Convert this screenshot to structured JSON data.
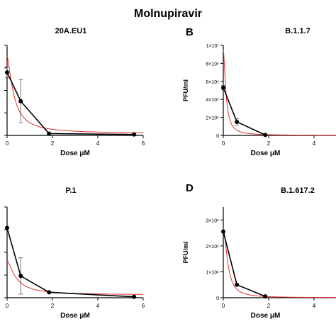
{
  "figure_title": "Molnupiravir",
  "chart_data": [
    {
      "type": "line",
      "panel_letter": "",
      "title": "20A.EU1",
      "xlabel": "Dose μM",
      "ylabel": "",
      "xlim": [
        0,
        6
      ],
      "ylim": [
        0,
        100
      ],
      "x_ticks": [
        "0",
        "2",
        "4",
        "6"
      ],
      "y_ticks": [],
      "grid": false,
      "series": [
        {
          "role": "observed",
          "color": "#000000",
          "x": [
            0,
            0.6,
            1.85,
            5.6
          ],
          "y": [
            70,
            38,
            2,
            1
          ],
          "err": [
            6,
            24,
            0,
            0
          ]
        },
        {
          "role": "fit",
          "color": "#e0302a",
          "ic_x0": 0.3,
          "top": 88,
          "bottom": 2,
          "hill": 1.5
        }
      ]
    },
    {
      "type": "line",
      "panel_letter": "B",
      "title": "B.1.1.7",
      "xlabel": "Dose μM",
      "ylabel": "PFU/ml",
      "xlim": [
        0,
        6
      ],
      "ylim": [
        0,
        10000000
      ],
      "x_ticks": [
        "0",
        "2",
        "4"
      ],
      "y_ticks": [
        "0",
        "2×10⁶",
        "4×10⁶",
        "6×10⁶",
        "8×10⁶",
        "1×10⁷"
      ],
      "y_tick_values": [
        0,
        2000000,
        4000000,
        6000000,
        8000000,
        10000000
      ],
      "grid": false,
      "series": [
        {
          "role": "observed",
          "color": "#000000",
          "x": [
            0,
            0.6,
            1.85
          ],
          "y": [
            5300000,
            1500000,
            50000
          ],
          "err": [
            250000,
            350000,
            0
          ]
        },
        {
          "role": "fit",
          "color": "#e0302a",
          "ic_x0": 0.12,
          "top": 9500000,
          "bottom": 0,
          "hill": 1.7
        }
      ]
    },
    {
      "type": "line",
      "panel_letter": "",
      "title": "P.1",
      "xlabel": "Dose μM",
      "ylabel": "",
      "xlim": [
        0,
        6
      ],
      "ylim": [
        0,
        100
      ],
      "x_ticks": [
        "0",
        "2",
        "4",
        "6"
      ],
      "y_ticks": [],
      "grid": false,
      "series": [
        {
          "role": "observed",
          "color": "#000000",
          "x": [
            0,
            0.6,
            1.85,
            5.6
          ],
          "y": [
            77,
            24,
            6,
            1
          ],
          "err": [
            0,
            20,
            0,
            0
          ]
        },
        {
          "role": "fit",
          "color": "#e0302a",
          "ic_x0": 0.4,
          "top": 41,
          "bottom": 3,
          "hill": 1.5
        }
      ]
    },
    {
      "type": "line",
      "panel_letter": "D",
      "title": "B.1.617.2",
      "xlabel": "Dose μM",
      "ylabel": "PFU/ml",
      "xlim": [
        0,
        6
      ],
      "ylim": [
        0,
        3500000
      ],
      "x_ticks": [
        "0",
        "2",
        "4"
      ],
      "y_ticks": [
        "0",
        "1×10⁶",
        "2×10⁶",
        "3×10⁶"
      ],
      "y_tick_values": [
        0,
        1000000,
        2000000,
        3000000
      ],
      "grid": false,
      "series": [
        {
          "role": "observed",
          "color": "#000000",
          "x": [
            0,
            0.6,
            1.85
          ],
          "y": [
            2550000,
            500000,
            50000
          ],
          "err": [
            0,
            0,
            0
          ]
        },
        {
          "role": "fit",
          "color": "#e0302a",
          "ic_x0": 0.2,
          "top": 2700000,
          "bottom": 0,
          "hill": 1.8
        }
      ]
    }
  ]
}
